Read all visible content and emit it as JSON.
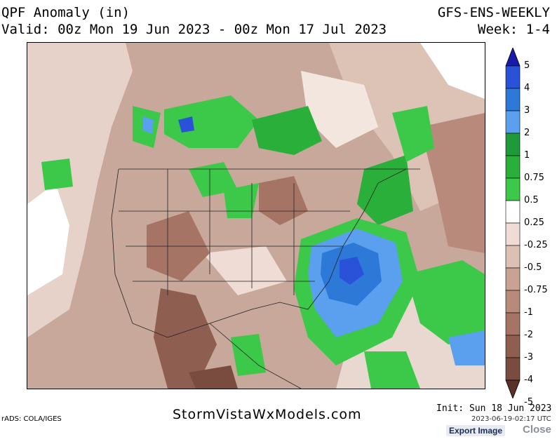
{
  "header": {
    "title": "QPF Anomaly (in)",
    "model": "GFS-ENS-WEEKLY",
    "valid": "Valid: 00z Mon 19 Jun 2023 - 00z Mon 17 Jul 2023",
    "week": "Week: 1-4"
  },
  "colorbar": {
    "labels": [
      "5",
      "4",
      "3",
      "2",
      "1",
      "0.75",
      "0.5",
      "0.25",
      "-0.25",
      "-0.5",
      "-0.75",
      "-1",
      "-2",
      "-3",
      "-4",
      "-5"
    ],
    "colors": [
      "#1a1aa8",
      "#2a52d8",
      "#2c79d8",
      "#5aa0ee",
      "#1f9a3a",
      "#2aaf3a",
      "#3cc848",
      "#ffffff",
      "#efdcd4",
      "#dcc0b4",
      "#c9a294",
      "#b88a7c",
      "#a57464",
      "#8e5e50",
      "#7a4c40",
      "#5a3028"
    ]
  },
  "footer": {
    "credit": "rADS: COLA/IGES",
    "site": "StormVistaWxModels.com",
    "init": "Init: Sun 18 Jun 2023",
    "timestamp": "2023-06-19-02:17 UTC",
    "export_label": "Export Image",
    "close_label": "Close"
  }
}
